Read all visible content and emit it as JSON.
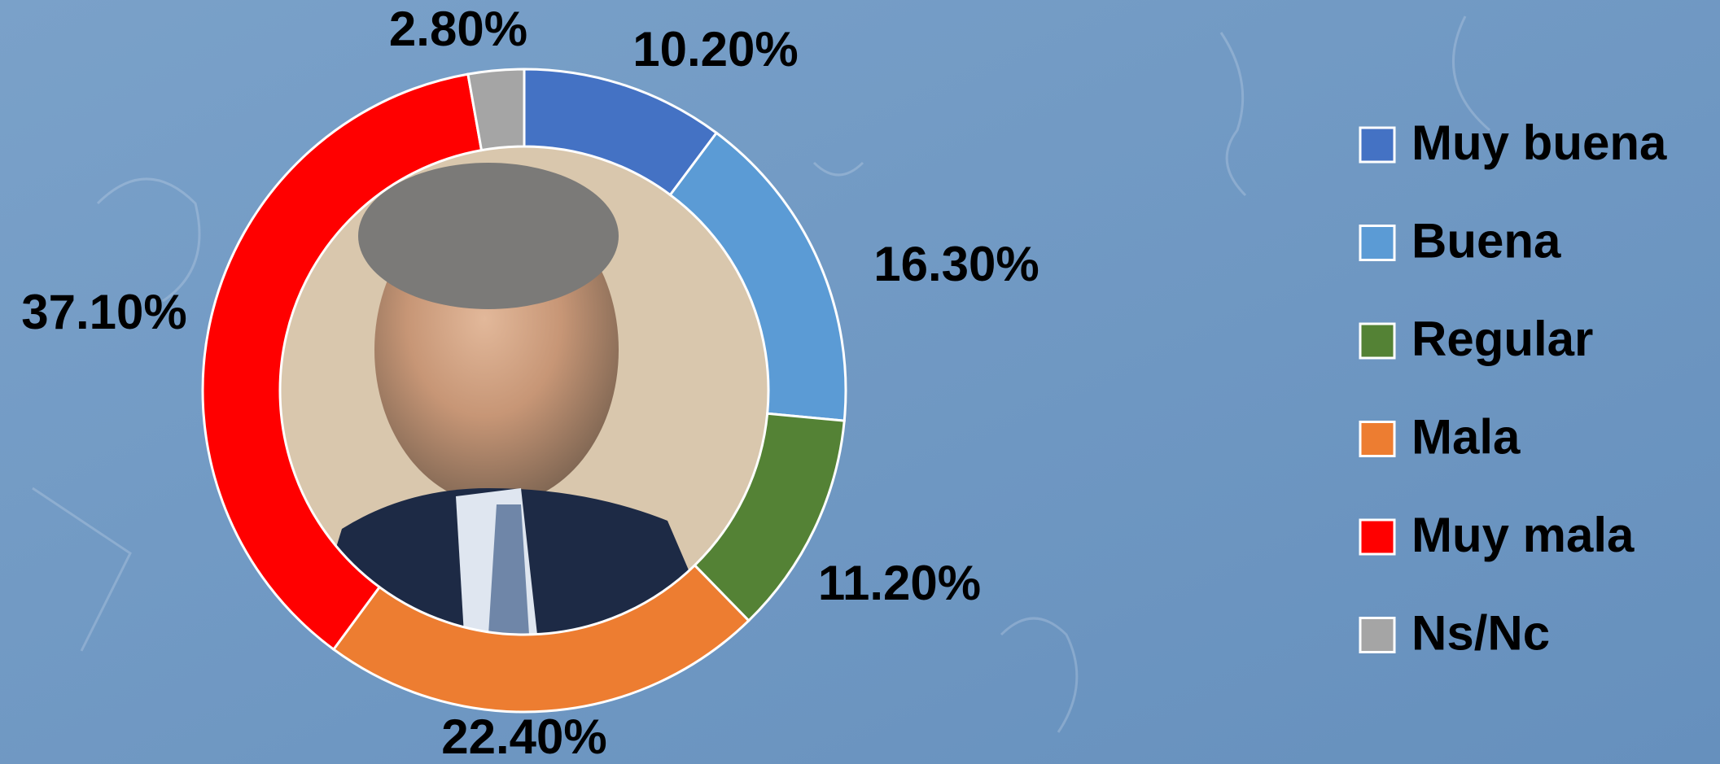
{
  "chart_data": {
    "type": "donut",
    "categories": [
      "Muy buena",
      "Buena",
      "Regular",
      "Mala",
      "Muy mala",
      "Ns/Nc"
    ],
    "values": [
      10.2,
      16.3,
      11.2,
      22.4,
      37.1,
      2.8
    ],
    "value_labels": [
      "10.20%",
      "16.30%",
      "11.20%",
      "22.40%",
      "37.10%",
      "2.80%"
    ],
    "colors": [
      "#4472c4",
      "#5b9bd5",
      "#548235",
      "#ed7d31",
      "#ff0000",
      "#a5a5a5"
    ],
    "legend": "right"
  }
}
